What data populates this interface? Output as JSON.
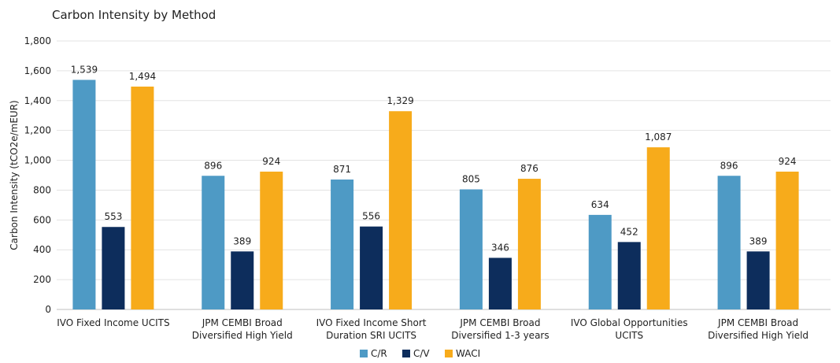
{
  "chart_data": {
    "type": "bar",
    "title": "Carbon Intensity by Method",
    "ylabel": "Carbon Intensity (tCO2e/mEUR)",
    "xlabel": "",
    "ylim": [
      0,
      1800
    ],
    "yticks": [
      0,
      200,
      400,
      600,
      800,
      1000,
      1200,
      1400,
      1600,
      1800
    ],
    "ytick_labels": [
      "0",
      "200",
      "400",
      "600",
      "800",
      "1,000",
      "1,200",
      "1,400",
      "1,600",
      "1,800"
    ],
    "grid": true,
    "legend_position": "bottom",
    "categories": [
      [
        "IVO Fixed Income UCITS"
      ],
      [
        "JPM CEMBI Broad",
        "Diversified High Yield"
      ],
      [
        "IVO Fixed Income Short",
        "Duration SRI UCITS"
      ],
      [
        "JPM CEMBI Broad",
        "Diversified 1-3 years"
      ],
      [
        "IVO Global Opportunities",
        "UCITS"
      ],
      [
        "JPM CEMBI Broad",
        "Diversified High Yield"
      ]
    ],
    "series": [
      {
        "name": "C/R",
        "color": "#4E9AC5",
        "values": [
          1539,
          896,
          871,
          805,
          634,
          896
        ],
        "labels": [
          "1,539",
          "896",
          "871",
          "805",
          "634",
          "896"
        ]
      },
      {
        "name": "C/V",
        "color": "#0D2D5C",
        "values": [
          553,
          389,
          556,
          346,
          452,
          389
        ],
        "labels": [
          "553",
          "389",
          "556",
          "346",
          "452",
          "389"
        ]
      },
      {
        "name": "WACI",
        "color": "#F7AB1B",
        "values": [
          1494,
          924,
          1329,
          876,
          1087,
          924
        ],
        "labels": [
          "1,494",
          "924",
          "1,329",
          "876",
          "1,087",
          "924"
        ]
      }
    ]
  }
}
